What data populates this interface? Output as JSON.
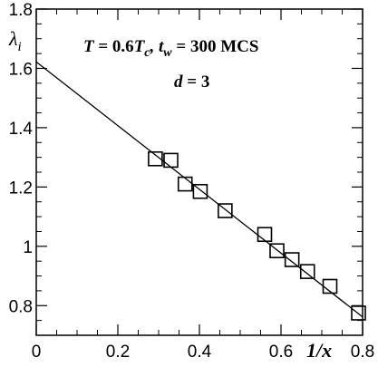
{
  "chart_data": {
    "type": "scatter",
    "x": [
      0.292,
      0.33,
      0.365,
      0.402,
      0.463,
      0.56,
      0.59,
      0.627,
      0.665,
      0.72,
      0.79
    ],
    "y": [
      1.295,
      1.29,
      1.21,
      1.185,
      1.12,
      1.04,
      0.985,
      0.955,
      0.915,
      0.865,
      0.775
    ],
    "fit_line": {
      "x": [
        0,
        0.8
      ],
      "y": [
        1.622,
        0.762
      ]
    },
    "xlabel": "1/x",
    "ylabel": "λ_i",
    "xlim": [
      0,
      0.8
    ],
    "ylim": [
      0.7,
      1.8
    ],
    "xticks": [
      "0",
      "0.2",
      "0.4",
      "0.6",
      "0.8"
    ],
    "xtick_values": [
      0,
      0.2,
      0.4,
      0.6,
      0.8
    ],
    "yticks": [
      "0.8",
      "1",
      "1.2",
      "1.4",
      "1.6",
      "1.8"
    ],
    "ytick_values": [
      0.8,
      1.0,
      1.2,
      1.4,
      1.6,
      1.8
    ],
    "annotations": [
      "T = 0.6T_c, t_w = 300 MCS",
      "d = 3"
    ],
    "marker": "open-square",
    "grid": false,
    "colors": {
      "line": "#000000",
      "marker": "#000000"
    }
  }
}
